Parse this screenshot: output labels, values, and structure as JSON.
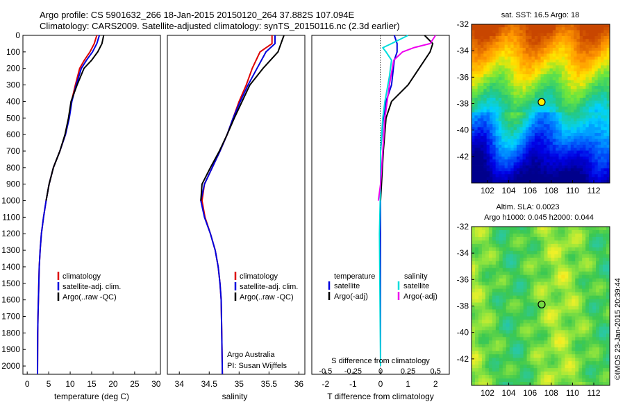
{
  "header": {
    "line1": "Argo profile: CS 5901632_266 18-Jan-2015 20150120_264 37.882S 107.094E",
    "line2": "Climatology: CARS2009. Satellite-adjusted climatology: synTS_20150116.nc (2.3d earlier)"
  },
  "colors": {
    "climatology": "#dd0000",
    "satellite": "#0000dd",
    "argo": "#000000",
    "salinity_satellite": "#00dddd",
    "salinity_argo": "#ee00ee"
  },
  "chart_data": [
    {
      "type": "line",
      "panel": "temperature",
      "xlabel": "temperature (deg C)",
      "xlim": [
        -1,
        31
      ],
      "xticks": [
        "0",
        "5",
        "10",
        "15",
        "20",
        "25",
        "30"
      ],
      "ylim": [
        0,
        2050
      ],
      "yticks": [
        "0",
        "100",
        "200",
        "300",
        "400",
        "500",
        "600",
        "700",
        "800",
        "900",
        "1000",
        "1100",
        "1200",
        "1300",
        "1400",
        "1500",
        "1600",
        "1700",
        "1800",
        "1900",
        "2000"
      ],
      "legend": [
        "climatology",
        "satellite-adj. clim.",
        "Argo(..raw -QC)"
      ],
      "series": [
        {
          "name": "climatology",
          "color": "#dd0000",
          "x": [
            16.2,
            15.6,
            14.6,
            13.3,
            12.2,
            11.2,
            10.3,
            9.7,
            8.9,
            7.6,
            6.1,
            5.1,
            4.4,
            3.8,
            3.3,
            3.0,
            2.8,
            2.7,
            2.6,
            2.5,
            2.45,
            2.4
          ],
          "y": [
            0,
            50,
            100,
            150,
            200,
            300,
            400,
            500,
            600,
            700,
            800,
            900,
            1000,
            1100,
            1200,
            1300,
            1400,
            1500,
            1600,
            1700,
            1800,
            2050
          ]
        },
        {
          "name": "satellite-adj. clim.",
          "color": "#0000dd",
          "x": [
            16.8,
            16.2,
            15.2,
            13.8,
            12.6,
            11.4,
            10.4,
            9.8,
            8.9,
            7.6,
            6.1,
            5.1,
            4.4,
            3.8,
            3.3,
            3.0,
            2.8,
            2.7,
            2.6,
            2.5,
            2.45,
            2.4
          ],
          "y": [
            0,
            50,
            100,
            150,
            200,
            300,
            400,
            500,
            600,
            700,
            800,
            900,
            1000,
            1100,
            1200,
            1300,
            1400,
            1500,
            1600,
            1700,
            1800,
            2050
          ]
        },
        {
          "name": "Argo(..raw -QC)",
          "color": "#000000",
          "x": [
            17.8,
            17.4,
            16.4,
            15.0,
            13.2,
            11.6,
            10.2,
            9.6,
            8.8,
            7.6,
            6.1,
            5.1,
            4.4
          ],
          "y": [
            0,
            50,
            100,
            150,
            200,
            300,
            400,
            500,
            600,
            700,
            800,
            900,
            1000
          ]
        }
      ]
    },
    {
      "type": "line",
      "panel": "salinity",
      "xlabel": "salinity",
      "xlim": [
        33.8,
        36.1
      ],
      "xticks": [
        "34",
        "34.5",
        "35",
        "35.5",
        "36"
      ],
      "ylim": [
        0,
        2050
      ],
      "legend": [
        "climatology",
        "satellite-adj. clim.",
        "Argo(..raw -QC)"
      ],
      "notes": [
        "Argo Australia",
        "PI: Susan Wijffels"
      ],
      "series": [
        {
          "name": "climatology",
          "color": "#dd0000",
          "x": [
            35.55,
            35.55,
            35.35,
            35.22,
            35.12,
            35.0,
            34.9,
            34.8,
            34.68,
            34.55,
            34.42,
            34.38,
            34.43,
            34.52,
            34.6,
            34.65,
            34.68,
            34.7,
            34.71,
            34.72
          ],
          "y": [
            0,
            50,
            100,
            200,
            300,
            400,
            500,
            600,
            700,
            800,
            900,
            1000,
            1100,
            1200,
            1300,
            1400,
            1500,
            1600,
            1800,
            2050
          ]
        },
        {
          "name": "satellite-adj. clim.",
          "color": "#0000dd",
          "x": [
            35.6,
            35.6,
            35.45,
            35.3,
            35.15,
            35.02,
            34.9,
            34.8,
            34.68,
            34.55,
            34.42,
            34.36,
            34.42,
            34.52,
            34.6,
            34.65,
            34.68,
            34.7,
            34.71,
            34.72
          ],
          "y": [
            0,
            50,
            100,
            200,
            300,
            400,
            500,
            600,
            700,
            800,
            900,
            1000,
            1100,
            1200,
            1300,
            1400,
            1500,
            1600,
            1800,
            2050
          ]
        },
        {
          "name": "Argo(..raw -QC)",
          "color": "#000000",
          "x": [
            35.75,
            35.7,
            35.65,
            35.4,
            35.18,
            35.05,
            34.92,
            34.8,
            34.67,
            34.52,
            34.38,
            34.36
          ],
          "y": [
            0,
            50,
            100,
            200,
            300,
            400,
            500,
            600,
            700,
            800,
            900,
            1000
          ]
        }
      ]
    },
    {
      "type": "line",
      "panel": "difference",
      "xlabel": "T difference from climatology",
      "xlabel_top": "S difference from climatology",
      "xlim": [
        -2.5,
        2.5
      ],
      "xticks": [
        "-2",
        "-1",
        "0",
        "1",
        "2"
      ],
      "xticks_top": [
        "-0.5",
        "-0.25",
        "0",
        "0.25",
        "0.5"
      ],
      "ylim": [
        0,
        2050
      ],
      "legend_temperature": {
        "title": "temperature",
        "items": [
          "satellite",
          "Argo(-adj)"
        ]
      },
      "legend_salinity": {
        "title": "salinity",
        "items": [
          "satellite",
          "Argo(-adj)"
        ]
      },
      "series": [
        {
          "name": "temperature satellite",
          "color": "#0000dd",
          "x": [
            0.5,
            0.6,
            0.6,
            0.5,
            0.4,
            0.2,
            0.1,
            0,
            0,
            0,
            0
          ],
          "y": [
            0,
            50,
            100,
            150,
            300,
            400,
            500,
            700,
            900,
            1200,
            2000
          ]
        },
        {
          "name": "temperature Argo(-adj)",
          "color": "#000000",
          "x": [
            1.6,
            1.9,
            1.8,
            1.6,
            1.0,
            0.4,
            0.2,
            0.1,
            0
          ],
          "y": [
            0,
            50,
            100,
            150,
            300,
            400,
            500,
            700,
            1000
          ]
        },
        {
          "name": "salinity satellite",
          "color": "#00dddd",
          "x": [
            0.25,
            0.1,
            0.02,
            0.05,
            0.1,
            0.08,
            0.04,
            0.02,
            0,
            0,
            -0.01,
            0
          ],
          "y": [
            0,
            50,
            75,
            100,
            150,
            250,
            400,
            500,
            700,
            900,
            1200,
            2000
          ]
        },
        {
          "name": "salinity Argo(-adj)",
          "color": "#ee00ee",
          "x": [
            0.5,
            0.45,
            0.3,
            0.2,
            0.12,
            0.08,
            0.04,
            0.02,
            0.0,
            -0.02
          ],
          "y": [
            0,
            50,
            75,
            100,
            150,
            300,
            500,
            700,
            900,
            1000
          ]
        }
      ]
    },
    {
      "type": "heatmap",
      "panel": "sst-map",
      "title": "sat. SST: 16.5 Argo: 18",
      "xlim": [
        100.5,
        113.5
      ],
      "ylim": [
        -44,
        -32
      ],
      "xticks": [
        "102",
        "104",
        "106",
        "108",
        "110",
        "112"
      ],
      "yticks": [
        "-32",
        "-34",
        "-36",
        "-38",
        "-40",
        "-42"
      ],
      "argo_position": {
        "lon": 107.094,
        "lat": -37.882
      }
    },
    {
      "type": "heatmap",
      "panel": "sla-map",
      "title_line1": "Altim. SLA: 0.0023",
      "title_line2": "Argo h1000: 0.045 h2000: 0.044",
      "xlim": [
        100.5,
        113.5
      ],
      "ylim": [
        -44,
        -32
      ],
      "xticks": [
        "102",
        "104",
        "106",
        "108",
        "110",
        "112"
      ],
      "yticks": [
        "-32",
        "-34",
        "-36",
        "-38",
        "-40",
        "-42"
      ],
      "argo_position": {
        "lon": 107.094,
        "lat": -37.882
      }
    }
  ],
  "credit": "©IMOS 23-Jan-2015 20:39:44"
}
